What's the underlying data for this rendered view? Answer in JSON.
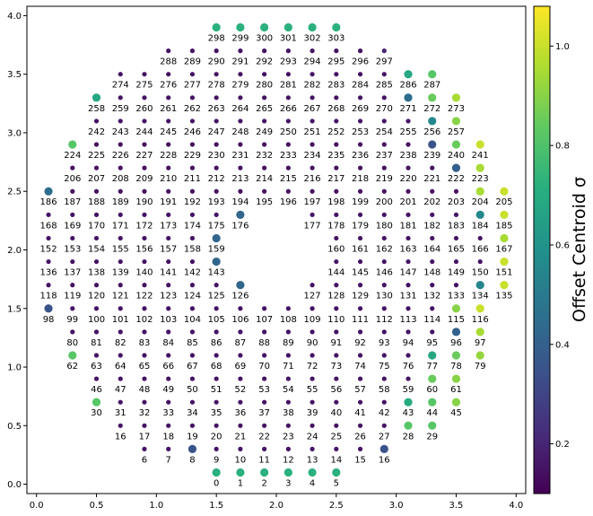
{
  "chart_data": {
    "type": "scatter",
    "xlim": [
      -0.08,
      4.08
    ],
    "ylim": [
      -0.08,
      4.08
    ],
    "x_ticks": [
      "0.0",
      "0.5",
      "1.0",
      "1.5",
      "2.0",
      "2.5",
      "3.0",
      "3.5",
      "4.0"
    ],
    "y_ticks": [
      "0.0",
      "0.5",
      "1.0",
      "1.5",
      "2.0",
      "2.5",
      "3.0",
      "3.5",
      "4.0"
    ],
    "grid": false,
    "legend": "none",
    "colormap": "viridis",
    "colorbar": {
      "label": "Offset Centroid σ",
      "range": [
        0.1,
        1.08
      ],
      "ticks": [
        "0.2",
        "0.4",
        "0.6",
        "0.8",
        "1.0"
      ]
    },
    "rows": [
      {
        "y": 0.1,
        "xs": [
          1.5,
          1.7,
          1.9,
          2.1,
          2.3,
          2.5
        ],
        "first_id": 0,
        "values": [
          0.72,
          0.72,
          0.72,
          0.72,
          0.72,
          0.72
        ]
      },
      {
        "y": 0.3,
        "xs": [
          0.9,
          1.1,
          1.3,
          1.5,
          1.7,
          1.9,
          2.1,
          2.3,
          2.5,
          2.7,
          2.9
        ],
        "first_id": 6,
        "values": [
          0.15,
          0.15,
          0.35,
          0.15,
          0.15,
          0.15,
          0.15,
          0.15,
          0.15,
          0.15,
          0.35
        ]
      },
      {
        "y": 0.5,
        "xs": [
          0.7,
          0.9,
          1.1,
          1.3,
          1.5,
          1.7,
          1.9,
          2.1,
          2.3,
          2.5,
          2.7,
          2.9,
          3.1,
          3.3
        ],
        "first_id": 16,
        "values": [
          0.15,
          0.15,
          0.15,
          0.15,
          0.15,
          0.15,
          0.15,
          0.15,
          0.15,
          0.15,
          0.15,
          0.15,
          0.82,
          0.82
        ]
      },
      {
        "y": 0.7,
        "xs": [
          0.5,
          0.7,
          0.9,
          1.1,
          1.3,
          1.5,
          1.7,
          1.9,
          2.1,
          2.3,
          2.5,
          2.7,
          2.9,
          3.1,
          3.3,
          3.5
        ],
        "first_id": 30,
        "values": [
          0.82,
          0.15,
          0.15,
          0.15,
          0.15,
          0.15,
          0.15,
          0.15,
          0.15,
          0.15,
          0.15,
          0.15,
          0.15,
          0.7,
          0.82,
          0.9
        ]
      },
      {
        "y": 0.9,
        "xs": [
          0.5,
          0.7,
          0.9,
          1.1,
          1.3,
          1.5,
          1.7,
          1.9,
          2.1,
          2.3,
          2.5,
          2.7,
          2.9,
          3.1,
          3.3,
          3.5
        ],
        "first_id": 46,
        "values": [
          0.15,
          0.15,
          0.15,
          0.15,
          0.15,
          0.15,
          0.15,
          0.15,
          0.15,
          0.15,
          0.15,
          0.15,
          0.15,
          0.15,
          0.85,
          0.9
        ]
      },
      {
        "y": 1.1,
        "xs": [
          0.3,
          0.5,
          0.7,
          0.9,
          1.1,
          1.3,
          1.5,
          1.7,
          1.9,
          2.1,
          2.3,
          2.5,
          2.7,
          2.9,
          3.1,
          3.3,
          3.5,
          3.7
        ],
        "first_id": 62,
        "values": [
          0.82,
          0.15,
          0.15,
          0.15,
          0.15,
          0.15,
          0.15,
          0.15,
          0.15,
          0.15,
          0.15,
          0.15,
          0.15,
          0.15,
          0.15,
          0.68,
          0.85,
          0.92
        ]
      },
      {
        "y": 1.3,
        "xs": [
          0.3,
          0.5,
          0.7,
          0.9,
          1.1,
          1.3,
          1.5,
          1.7,
          1.9,
          2.1,
          2.3,
          2.5,
          2.7,
          2.9,
          3.1,
          3.3,
          3.5,
          3.7
        ],
        "first_id": 80,
        "values": [
          0.15,
          0.15,
          0.15,
          0.15,
          0.15,
          0.15,
          0.15,
          0.15,
          0.15,
          0.15,
          0.15,
          0.15,
          0.15,
          0.15,
          0.15,
          0.15,
          0.4,
          0.95
        ]
      },
      {
        "y": 1.5,
        "xs": [
          0.1,
          0.3,
          0.5,
          0.7,
          0.9,
          1.1,
          1.3,
          1.5,
          1.7,
          1.9,
          2.1,
          2.3,
          2.5,
          2.7,
          2.9,
          3.1,
          3.3,
          3.5,
          3.7
        ],
        "first_id": 98,
        "values": [
          0.35,
          0.15,
          0.15,
          0.15,
          0.15,
          0.15,
          0.15,
          0.15,
          0.15,
          0.15,
          0.15,
          0.15,
          0.15,
          0.15,
          0.15,
          0.15,
          0.15,
          0.9,
          1.0
        ]
      },
      {
        "y": 1.7,
        "xs": [
          0.1,
          0.3,
          0.5,
          0.7,
          0.9,
          1.1,
          1.3,
          1.5,
          1.7,
          2.3,
          2.5,
          2.7,
          2.9,
          3.1,
          3.3,
          3.5,
          3.7,
          3.9
        ],
        "first_id": 118,
        "values": [
          0.15,
          0.15,
          0.15,
          0.15,
          0.15,
          0.15,
          0.15,
          0.15,
          0.42,
          0.15,
          0.15,
          0.15,
          0.15,
          0.15,
          0.15,
          0.15,
          0.55,
          1.0
        ]
      },
      {
        "y": 1.9,
        "xs": [
          0.1,
          0.3,
          0.5,
          0.7,
          0.9,
          1.1,
          1.3,
          1.5,
          2.5,
          2.7,
          2.9,
          3.1,
          3.3,
          3.5,
          3.7,
          3.9
        ],
        "first_id": 136,
        "values": [
          0.15,
          0.15,
          0.15,
          0.15,
          0.15,
          0.15,
          0.15,
          0.42,
          0.15,
          0.15,
          0.15,
          0.15,
          0.15,
          0.15,
          0.15,
          1.0
        ]
      },
      {
        "y": 2.1,
        "xs": [
          0.1,
          0.3,
          0.5,
          0.7,
          0.9,
          1.1,
          1.3,
          1.5,
          2.5,
          2.7,
          2.9,
          3.1,
          3.3,
          3.5,
          3.7,
          3.9
        ],
        "first_id": 152,
        "values": [
          0.15,
          0.15,
          0.15,
          0.15,
          0.15,
          0.15,
          0.15,
          0.42,
          0.15,
          0.15,
          0.15,
          0.15,
          0.15,
          0.15,
          0.15,
          0.95
        ]
      },
      {
        "y": 2.3,
        "xs": [
          0.1,
          0.3,
          0.5,
          0.7,
          0.9,
          1.1,
          1.3,
          1.5,
          1.7,
          2.3,
          2.5,
          2.7,
          2.9,
          3.1,
          3.3,
          3.5,
          3.7,
          3.9
        ],
        "first_id": 168,
        "values": [
          0.15,
          0.15,
          0.15,
          0.15,
          0.15,
          0.15,
          0.15,
          0.15,
          0.42,
          0.15,
          0.15,
          0.15,
          0.15,
          0.15,
          0.15,
          0.15,
          0.55,
          1.0
        ]
      },
      {
        "y": 2.5,
        "xs": [
          0.1,
          0.3,
          0.5,
          0.7,
          0.9,
          1.1,
          1.3,
          1.5,
          1.7,
          1.9,
          2.1,
          2.3,
          2.5,
          2.7,
          2.9,
          3.1,
          3.3,
          3.5,
          3.7,
          3.9
        ],
        "first_id": 186,
        "values": [
          0.45,
          0.15,
          0.15,
          0.15,
          0.15,
          0.15,
          0.15,
          0.15,
          0.15,
          0.15,
          0.15,
          0.15,
          0.15,
          0.15,
          0.15,
          0.15,
          0.15,
          0.15,
          0.95,
          1.0
        ]
      },
      {
        "y": 2.7,
        "xs": [
          0.3,
          0.5,
          0.7,
          0.9,
          1.1,
          1.3,
          1.5,
          1.7,
          1.9,
          2.1,
          2.3,
          2.5,
          2.7,
          2.9,
          3.1,
          3.3,
          3.5,
          3.7
        ],
        "first_id": 206,
        "values": [
          0.15,
          0.15,
          0.15,
          0.15,
          0.15,
          0.15,
          0.15,
          0.15,
          0.15,
          0.15,
          0.15,
          0.15,
          0.15,
          0.15,
          0.15,
          0.15,
          0.4,
          0.95
        ]
      },
      {
        "y": 2.9,
        "xs": [
          0.3,
          0.5,
          0.7,
          0.9,
          1.1,
          1.3,
          1.5,
          1.7,
          1.9,
          2.1,
          2.3,
          2.5,
          2.7,
          2.9,
          3.1,
          3.3,
          3.5,
          3.7
        ],
        "first_id": 224,
        "values": [
          0.82,
          0.15,
          0.15,
          0.15,
          0.15,
          0.15,
          0.15,
          0.15,
          0.15,
          0.15,
          0.15,
          0.15,
          0.15,
          0.15,
          0.15,
          0.35,
          0.85,
          1.0
        ]
      },
      {
        "y": 3.1,
        "xs": [
          0.5,
          0.7,
          0.9,
          1.1,
          1.3,
          1.5,
          1.7,
          1.9,
          2.1,
          2.3,
          2.5,
          2.7,
          2.9,
          3.1,
          3.3,
          3.5
        ],
        "first_id": 242,
        "values": [
          0.15,
          0.15,
          0.15,
          0.15,
          0.15,
          0.15,
          0.15,
          0.15,
          0.15,
          0.15,
          0.15,
          0.15,
          0.15,
          0.15,
          0.55,
          0.9
        ]
      },
      {
        "y": 3.3,
        "xs": [
          0.5,
          0.7,
          0.9,
          1.1,
          1.3,
          1.5,
          1.7,
          1.9,
          2.1,
          2.3,
          2.5,
          2.7,
          2.9,
          3.1,
          3.3,
          3.5
        ],
        "first_id": 258,
        "values": [
          0.68,
          0.15,
          0.15,
          0.15,
          0.15,
          0.15,
          0.15,
          0.15,
          0.15,
          0.15,
          0.15,
          0.15,
          0.15,
          0.45,
          0.85,
          0.95
        ]
      },
      {
        "y": 3.5,
        "xs": [
          0.7,
          0.9,
          1.1,
          1.3,
          1.5,
          1.7,
          1.9,
          2.1,
          2.3,
          2.5,
          2.7,
          2.9,
          3.1,
          3.3
        ],
        "first_id": 274,
        "values": [
          0.15,
          0.15,
          0.15,
          0.15,
          0.15,
          0.15,
          0.15,
          0.15,
          0.15,
          0.15,
          0.15,
          0.15,
          0.68,
          0.82
        ]
      },
      {
        "y": 3.7,
        "xs": [
          1.1,
          1.3,
          1.5,
          1.7,
          1.9,
          2.1,
          2.3,
          2.5,
          2.7,
          2.9
        ],
        "first_id": 288,
        "values": [
          0.15,
          0.15,
          0.15,
          0.15,
          0.15,
          0.15,
          0.15,
          0.15,
          0.15,
          0.2
        ]
      },
      {
        "y": 3.9,
        "xs": [
          1.5,
          1.7,
          1.9,
          2.1,
          2.3,
          2.5
        ],
        "first_id": 298,
        "values": [
          0.72,
          0.72,
          0.72,
          0.72,
          0.72,
          0.72
        ]
      }
    ]
  }
}
